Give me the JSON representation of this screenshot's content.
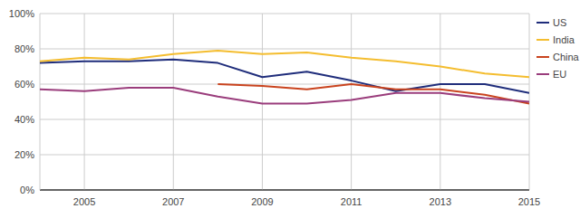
{
  "chart_data": {
    "type": "line",
    "x": [
      2004,
      2005,
      2006,
      2007,
      2008,
      2009,
      2010,
      2011,
      2012,
      2013,
      2014,
      2015
    ],
    "xlim": [
      2004,
      2015
    ],
    "xticks": [
      2005,
      2007,
      2009,
      2011,
      2013,
      2015
    ],
    "ylim": [
      0,
      100
    ],
    "yticks": [
      {
        "value": 0,
        "label": "0%"
      },
      {
        "value": 20,
        "label": "20%"
      },
      {
        "value": 40,
        "label": "40%"
      },
      {
        "value": 60,
        "label": "60%"
      },
      {
        "value": 80,
        "label": "80%"
      },
      {
        "value": 100,
        "label": "100%"
      }
    ],
    "grid": true,
    "legend": "right",
    "series": [
      {
        "name": "US",
        "color": "#1f2d7b",
        "values": [
          72,
          73,
          73,
          74,
          72,
          64,
          67,
          62,
          56,
          60,
          60,
          55
        ]
      },
      {
        "name": "India",
        "color": "#f4bd2f",
        "values": [
          73,
          75,
          74,
          77,
          79,
          77,
          78,
          75,
          73,
          70,
          66,
          64
        ]
      },
      {
        "name": "China",
        "color": "#c9431e",
        "values": [
          null,
          null,
          null,
          null,
          60,
          59,
          57,
          60,
          57,
          57,
          54,
          49
        ]
      },
      {
        "name": "EU",
        "color": "#9a3d7c",
        "values": [
          57,
          56,
          58,
          58,
          53,
          49,
          49,
          51,
          55,
          55,
          52,
          50
        ]
      }
    ]
  }
}
